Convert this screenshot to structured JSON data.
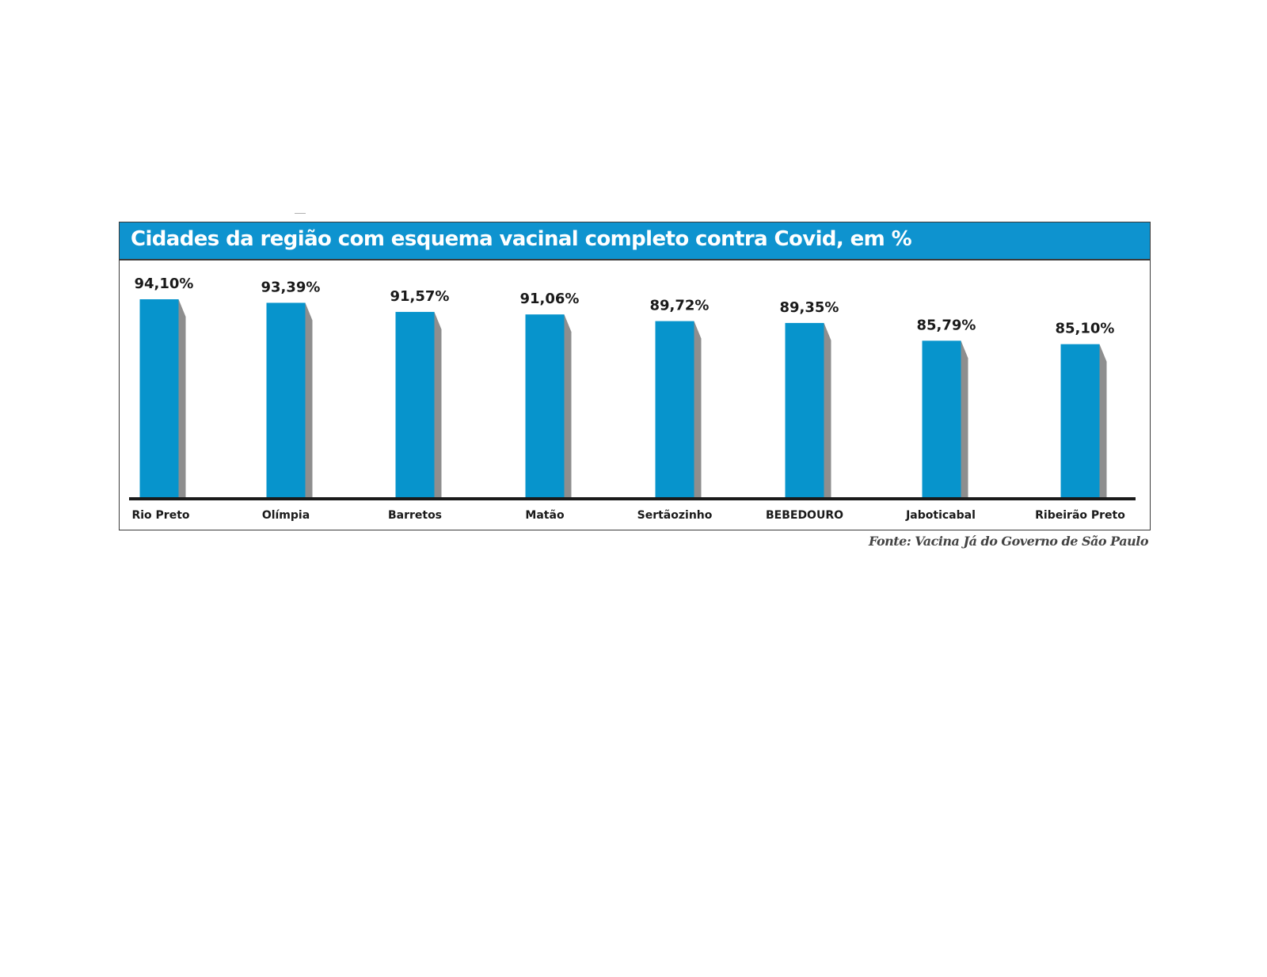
{
  "colors": {
    "bar": "#0794cc",
    "bar_shadow": "#8e8e8e",
    "title_bg": "#0e93cf",
    "axis": "#1a1a1a"
  },
  "chart_data": {
    "type": "bar",
    "title": "Cidades da região com esquema vacinal completo contra Covid, em %",
    "categories": [
      "Rio Preto",
      "Olímpia",
      "Barretos",
      "Matão",
      "Sertãozinho",
      "BEBEDOURO",
      "Jaboticabal",
      "Ribeirão Preto"
    ],
    "values": [
      94.1,
      93.39,
      91.57,
      91.06,
      89.72,
      89.35,
      85.79,
      85.1
    ],
    "value_labels": [
      "94,10%",
      "93,39%",
      "91,57%",
      "91,06%",
      "89,72%",
      "89,35%",
      "85,79%",
      "85,10%"
    ],
    "xlabel": "",
    "ylabel": "",
    "grid": false,
    "legend": "none"
  },
  "source": "Fonte: Vacina Já do Governo de São Paulo"
}
